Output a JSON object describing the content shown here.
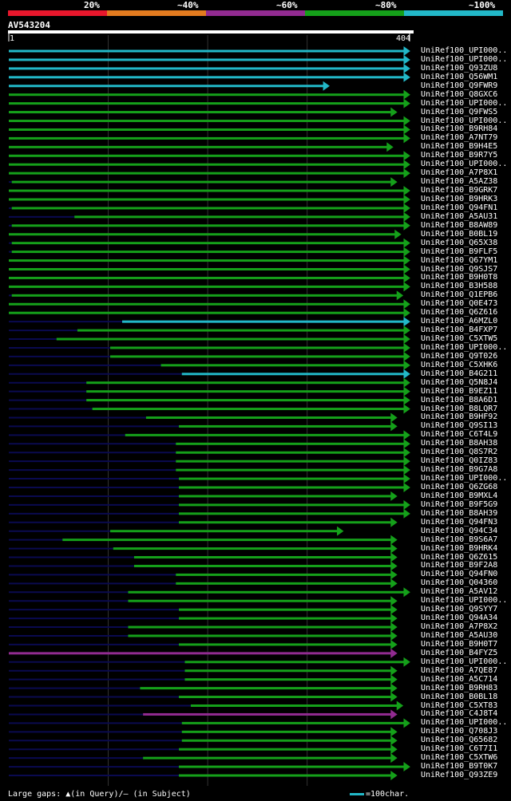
{
  "legend": {
    "segments": [
      {
        "label": "20%",
        "color": "#e8172c"
      },
      {
        "label": "~40%",
        "color": "#e37b1f"
      },
      {
        "label": "~60%",
        "color": "#922b91"
      },
      {
        "label": "~80%",
        "color": "#15a01a"
      },
      {
        "label": "~100%",
        "color": "#22b8c8"
      }
    ]
  },
  "query": {
    "name": "AV543204",
    "start": "1",
    "end": "404",
    "length": 404
  },
  "colors": {
    "cyan": "#22b8c8",
    "green": "#15a01a",
    "magenta": "#922b91",
    "navy": "#0a0a50",
    "grid": "#333333",
    "marker": "#ffffaa"
  },
  "hits": [
    {
      "label": "UniRef100_UPI000..",
      "start": 1,
      "end": 404,
      "color": "cyan",
      "arrow": true
    },
    {
      "label": "UniRef100_UPI000..",
      "start": 1,
      "end": 404,
      "color": "cyan",
      "arrow": true
    },
    {
      "label": "UniRef100_Q93ZU8",
      "start": 1,
      "end": 404,
      "color": "cyan",
      "arrow": true
    },
    {
      "label": "UniRef100_Q56WM1",
      "start": 1,
      "end": 404,
      "color": "cyan",
      "arrow": true
    },
    {
      "label": "UniRef100_Q9FWR9",
      "start": 1,
      "end": 323,
      "color": "cyan",
      "arrow": true
    },
    {
      "label": "UniRef100_Q8GXC6",
      "start": 1,
      "end": 404,
      "color": "green",
      "arrow": true
    },
    {
      "label": "UniRef100_UPI000..",
      "start": 1,
      "end": 404,
      "color": "green",
      "arrow": true
    },
    {
      "label": "UniRef100_Q9FWS5",
      "start": 1,
      "end": 391,
      "color": "green",
      "arrow": true
    },
    {
      "label": "UniRef100_UPI000..",
      "start": 1,
      "end": 404,
      "color": "green",
      "arrow": true
    },
    {
      "label": "UniRef100_B9RH84",
      "start": 1,
      "end": 404,
      "color": "green",
      "arrow": true
    },
    {
      "label": "UniRef100_A7NT79",
      "start": 1,
      "end": 404,
      "color": "green",
      "arrow": true
    },
    {
      "label": "UniRef100_B9H4E5",
      "start": 1,
      "end": 387,
      "color": "green",
      "arrow": true
    },
    {
      "label": "UniRef100_B9R7Y5",
      "start": 1,
      "end": 404,
      "color": "green",
      "arrow": true
    },
    {
      "label": "UniRef100_UPI000..",
      "start": 1,
      "end": 404,
      "color": "green",
      "arrow": true
    },
    {
      "label": "UniRef100_A7P8X1",
      "start": 1,
      "end": 404,
      "color": "green",
      "arrow": true
    },
    {
      "label": "UniRef100_A5AZ38",
      "start": 4,
      "end": 391,
      "color": "green",
      "arrow": true
    },
    {
      "label": "UniRef100_B9GRK7",
      "start": 1,
      "end": 404,
      "color": "green",
      "arrow": true
    },
    {
      "label": "UniRef100_B9HRK3",
      "start": 1,
      "end": 404,
      "color": "green",
      "arrow": true
    },
    {
      "label": "UniRef100_Q94FN1",
      "start": 4,
      "end": 404,
      "color": "green",
      "arrow": true
    },
    {
      "label": "UniRef100_A5AU31",
      "start": 67,
      "end": 404,
      "color": "green",
      "arrow": true
    },
    {
      "label": "UniRef100_B8AW89",
      "start": 4,
      "end": 404,
      "color": "green",
      "arrow": true
    },
    {
      "label": "UniRef100_B0BL19",
      "start": 1,
      "end": 395,
      "color": "green",
      "arrow": true
    },
    {
      "label": "UniRef100_Q65X38",
      "start": 4,
      "end": 404,
      "color": "green",
      "arrow": true
    },
    {
      "label": "UniRef100_B9FLF5",
      "start": 4,
      "end": 404,
      "color": "green",
      "arrow": true
    },
    {
      "label": "UniRef100_Q67YM1",
      "start": 1,
      "end": 404,
      "color": "green",
      "arrow": true
    },
    {
      "label": "UniRef100_Q9SJS7",
      "start": 1,
      "end": 404,
      "color": "green",
      "arrow": true
    },
    {
      "label": "UniRef100_B9H0T8",
      "start": 1,
      "end": 404,
      "color": "green",
      "arrow": true
    },
    {
      "label": "UniRef100_B3H588",
      "start": 1,
      "end": 404,
      "color": "green",
      "arrow": true
    },
    {
      "label": "UniRef100_Q1EPB6",
      "start": 4,
      "end": 397,
      "color": "green",
      "arrow": true
    },
    {
      "label": "UniRef100_Q0E473",
      "start": 1,
      "end": 404,
      "color": "green",
      "arrow": true
    },
    {
      "label": "UniRef100_Q6Z616",
      "start": 1,
      "end": 404,
      "color": "green",
      "arrow": true
    },
    {
      "label": "UniRef100_A6MZL0",
      "start": 115,
      "end": 404,
      "color": "cyan",
      "arrow": true
    },
    {
      "label": "UniRef100_B4FXP7",
      "start": 70,
      "end": 404,
      "color": "green",
      "arrow": true
    },
    {
      "label": "UniRef100_C5XTW5",
      "start": 49,
      "end": 404,
      "color": "green",
      "arrow": true
    },
    {
      "label": "UniRef100_UPI000..",
      "start": 103,
      "end": 404,
      "color": "green",
      "arrow": true
    },
    {
      "label": "UniRef100_Q9T026",
      "start": 103,
      "end": 404,
      "color": "green",
      "arrow": true
    },
    {
      "label": "UniRef100_C5XHK6",
      "start": 154,
      "end": 404,
      "color": "green",
      "arrow": true
    },
    {
      "label": "UniRef100_B4G211",
      "start": 175,
      "end": 404,
      "color": "cyan",
      "arrow": true
    },
    {
      "label": "UniRef100_Q5N8J4",
      "start": 79,
      "end": 404,
      "color": "green",
      "arrow": true
    },
    {
      "label": "UniRef100_B9EZ11",
      "start": 79,
      "end": 404,
      "color": "green",
      "arrow": true
    },
    {
      "label": "UniRef100_B8A6D1",
      "start": 79,
      "end": 404,
      "color": "green",
      "arrow": true
    },
    {
      "label": "UniRef100_B8LQR7",
      "start": 85,
      "end": 404,
      "color": "green",
      "arrow": true
    },
    {
      "label": "UniRef100_B9HF92",
      "start": 139,
      "end": 391,
      "color": "green",
      "arrow": true
    },
    {
      "label": "UniRef100_Q9SI13",
      "start": 172,
      "end": 391,
      "color": "green",
      "arrow": true
    },
    {
      "label": "UniRef100_C6T4L9",
      "start": 118,
      "end": 404,
      "color": "green",
      "arrow": true
    },
    {
      "label": "UniRef100_B8AH38",
      "start": 169,
      "end": 404,
      "color": "green",
      "arrow": true
    },
    {
      "label": "UniRef100_Q8S7R2",
      "start": 169,
      "end": 404,
      "color": "green",
      "arrow": true
    },
    {
      "label": "UniRef100_Q0IZ83",
      "start": 169,
      "end": 404,
      "color": "green",
      "arrow": true
    },
    {
      "label": "UniRef100_B9G7A8",
      "start": 169,
      "end": 404,
      "color": "green",
      "arrow": true
    },
    {
      "label": "UniRef100_UPI000..",
      "start": 172,
      "end": 404,
      "color": "green",
      "arrow": true
    },
    {
      "label": "UniRef100_Q6ZG68",
      "start": 172,
      "end": 404,
      "color": "green",
      "arrow": true
    },
    {
      "label": "UniRef100_B9MXL4",
      "start": 172,
      "end": 391,
      "color": "green",
      "arrow": true
    },
    {
      "label": "UniRef100_B9F5G9",
      "start": 172,
      "end": 404,
      "color": "green",
      "arrow": true
    },
    {
      "label": "UniRef100_B8AH39",
      "start": 172,
      "end": 404,
      "color": "green",
      "arrow": true
    },
    {
      "label": "UniRef100_Q94FN3",
      "start": 172,
      "end": 391,
      "color": "green",
      "arrow": true
    },
    {
      "label": "UniRef100_Q94C34",
      "start": 103,
      "end": 337,
      "color": "green",
      "arrow": true
    },
    {
      "label": "UniRef100_B9S6A7",
      "start": 55,
      "end": 391,
      "color": "green",
      "arrow": true
    },
    {
      "label": "UniRef100_B9HRK4",
      "start": 106,
      "end": 391,
      "color": "green",
      "arrow": true
    },
    {
      "label": "UniRef100_Q6Z615",
      "start": 127,
      "end": 391,
      "color": "green",
      "arrow": true
    },
    {
      "label": "UniRef100_B9F2A8",
      "start": 127,
      "end": 391,
      "color": "green",
      "arrow": true
    },
    {
      "label": "UniRef100_Q94FN0",
      "start": 169,
      "end": 391,
      "color": "green",
      "arrow": true
    },
    {
      "label": "UniRef100_Q04360",
      "start": 169,
      "end": 391,
      "color": "green",
      "arrow": true
    },
    {
      "label": "UniRef100_A5AV12",
      "start": 121,
      "end": 404,
      "color": "green",
      "arrow": true
    },
    {
      "label": "UniRef100_UPI000..",
      "start": 121,
      "end": 391,
      "color": "green",
      "arrow": true
    },
    {
      "label": "UniRef100_Q9SYY7",
      "start": 172,
      "end": 391,
      "color": "green",
      "arrow": true
    },
    {
      "label": "UniRef100_Q94A34",
      "start": 172,
      "end": 391,
      "color": "green",
      "arrow": true
    },
    {
      "label": "UniRef100_A7P8X2",
      "start": 121,
      "end": 391,
      "color": "green",
      "arrow": true
    },
    {
      "label": "UniRef100_A5AU30",
      "start": 121,
      "end": 391,
      "color": "green",
      "arrow": true
    },
    {
      "label": "UniRef100_B9H0T7",
      "start": 172,
      "end": 391,
      "color": "green",
      "arrow": true
    },
    {
      "label": "UniRef100_B4FYZ5",
      "start": 1,
      "end": 391,
      "color": "magenta",
      "arrow": true
    },
    {
      "label": "UniRef100_UPI000..",
      "start": 178,
      "end": 404,
      "color": "green",
      "arrow": true
    },
    {
      "label": "UniRef100_A7QE87",
      "start": 178,
      "end": 391,
      "color": "green",
      "arrow": true
    },
    {
      "label": "UniRef100_A5C714",
      "start": 178,
      "end": 391,
      "color": "green",
      "arrow": true
    },
    {
      "label": "UniRef100_B9RH83",
      "start": 133,
      "end": 391,
      "color": "green",
      "arrow": true
    },
    {
      "label": "UniRef100_B0BL18",
      "start": 172,
      "end": 391,
      "color": "green",
      "arrow": true
    },
    {
      "label": "UniRef100_C5XT83",
      "start": 184,
      "end": 397,
      "color": "green",
      "arrow": true
    },
    {
      "label": "UniRef100_C4J8T4",
      "start": 136,
      "end": 391,
      "color": "magenta",
      "arrow": true
    },
    {
      "label": "UniRef100_UPI000..",
      "start": 175,
      "end": 404,
      "color": "green",
      "arrow": true
    },
    {
      "label": "UniRef100_Q708J3",
      "start": 175,
      "end": 391,
      "color": "green",
      "arrow": true
    },
    {
      "label": "UniRef100_Q65682",
      "start": 175,
      "end": 391,
      "color": "green",
      "arrow": true
    },
    {
      "label": "UniRef100_C6T7I1",
      "start": 172,
      "end": 391,
      "color": "green",
      "arrow": true
    },
    {
      "label": "UniRef100_C5XTW6",
      "start": 136,
      "end": 391,
      "color": "green",
      "arrow": true
    },
    {
      "label": "UniRef100_B9T0K7",
      "start": 172,
      "end": 404,
      "color": "green",
      "arrow": true
    },
    {
      "label": "UniRef100_Q93ZE9",
      "start": 172,
      "end": 391,
      "color": "green",
      "arrow": true
    }
  ],
  "footer": {
    "gaps_text": "Large gaps: ▲(in Query)/– (in Subject)",
    "scale_text": "=100char."
  }
}
